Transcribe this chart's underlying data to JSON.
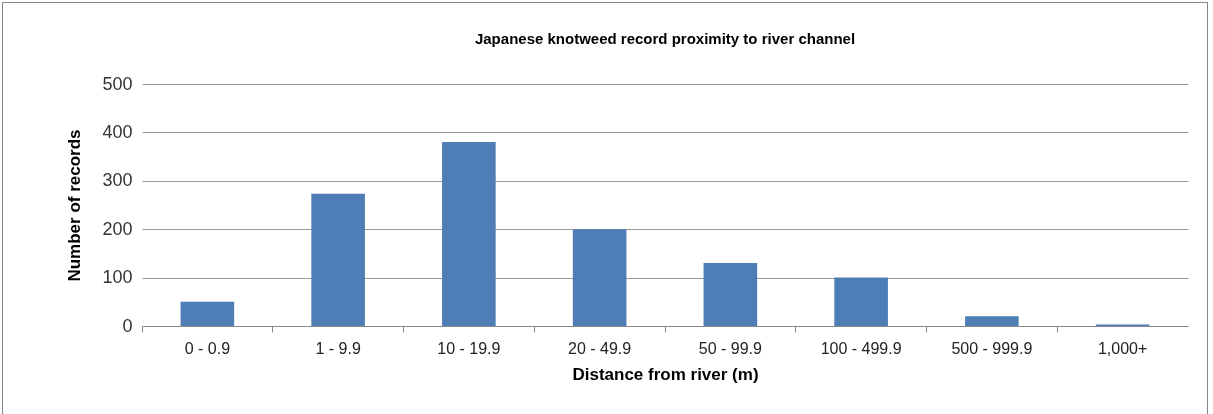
{
  "chart_data": {
    "type": "bar",
    "title": "Japanese knotweed record proximity to river channel",
    "xlabel": "Distance from river (m)",
    "ylabel": "Number of records",
    "categories": [
      "0 - 0.9",
      "1 - 9.9",
      "10 - 19.9",
      "20 - 49.9",
      "50 - 99.9",
      "100 - 499.9",
      "500 - 999.9",
      "1,000+"
    ],
    "values": [
      50,
      273,
      380,
      200,
      130,
      100,
      20,
      3
    ],
    "color": "#4f7db5",
    "ylim": [
      0,
      500
    ],
    "yticks": [
      0,
      100,
      200,
      300,
      400,
      500
    ],
    "grid": "y"
  }
}
